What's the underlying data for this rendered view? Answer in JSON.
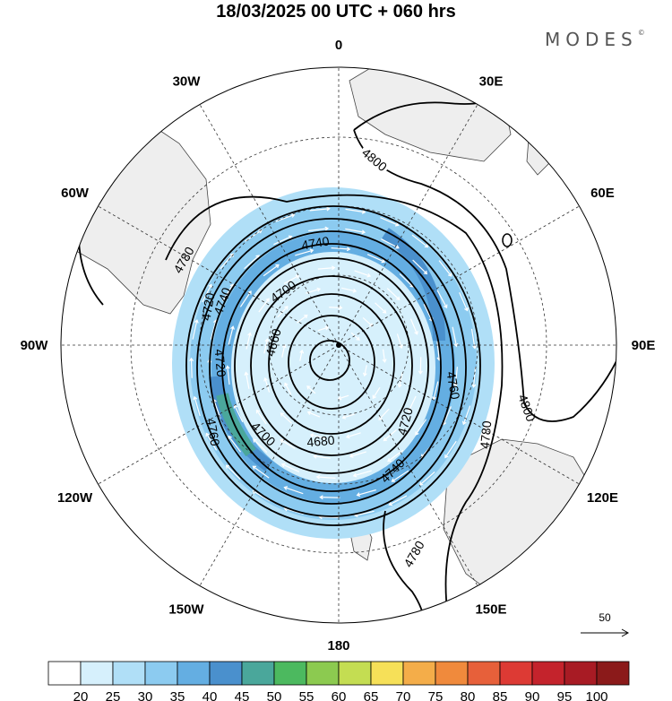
{
  "title": "18/03/2025  00 UTC  + 060 hrs",
  "brand": "MODES",
  "brand_mark": "©",
  "meridian_labels": [
    {
      "text": "0",
      "lon": 0
    },
    {
      "text": "30E",
      "lon": 30
    },
    {
      "text": "60E",
      "lon": 60
    },
    {
      "text": "90E",
      "lon": 90
    },
    {
      "text": "120E",
      "lon": 120
    },
    {
      "text": "150E",
      "lon": 150
    },
    {
      "text": "180",
      "lon": 180
    },
    {
      "text": "150W",
      "lon": -150
    },
    {
      "text": "120W",
      "lon": -120
    },
    {
      "text": "90W",
      "lon": -90
    },
    {
      "text": "60W",
      "lon": -60
    },
    {
      "text": "30W",
      "lon": -30
    }
  ],
  "contour_labels": [
    "4800",
    "4780",
    "4740",
    "4700",
    "4660",
    "4680",
    "4720",
    "4760",
    "4780",
    "4800",
    "4740",
    "4720",
    "4700",
    "4780",
    "4720",
    "4760",
    "4740"
  ],
  "vector_reference": "50",
  "colorbar": {
    "ticks": [
      "20",
      "25",
      "30",
      "35",
      "40",
      "45",
      "50",
      "55",
      "60",
      "65",
      "70",
      "75",
      "80",
      "85",
      "90",
      "95",
      "100"
    ],
    "colors": [
      "#ffffff",
      "#d6f0fc",
      "#b0dff7",
      "#8ccbf0",
      "#64aee2",
      "#4a90cd",
      "#4aa79b",
      "#4cb95f",
      "#8cca50",
      "#c4dd52",
      "#f6e058",
      "#f4ad49",
      "#f08a3c",
      "#e7603a",
      "#dd3a34",
      "#c4232c",
      "#a81b24",
      "#8b1a1a"
    ]
  }
}
